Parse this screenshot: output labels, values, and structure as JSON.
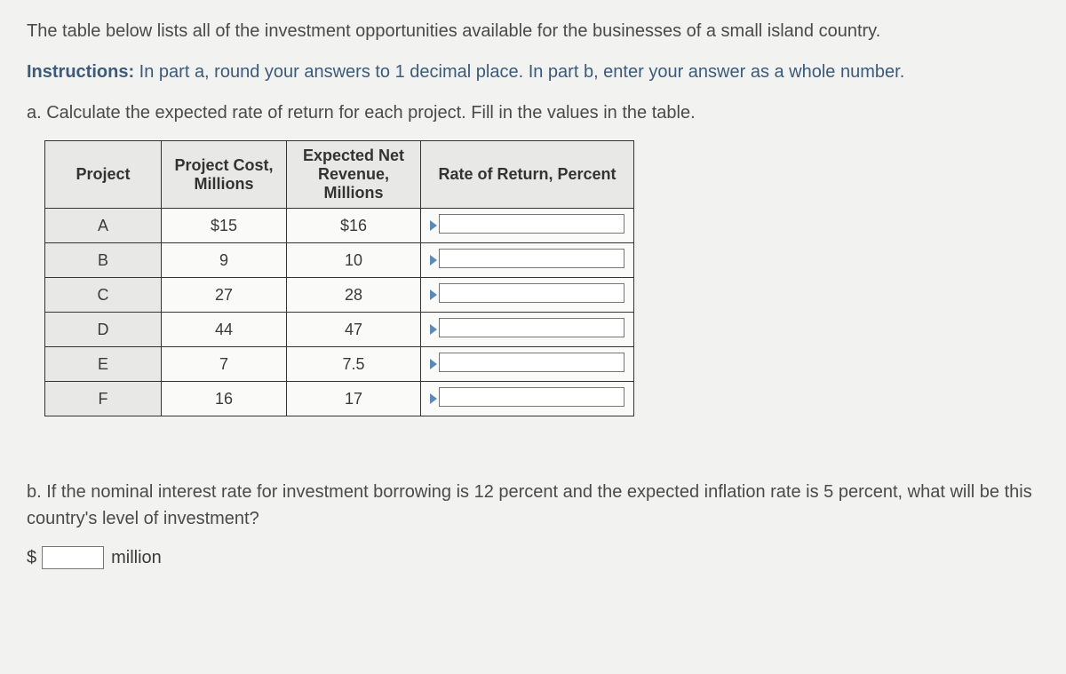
{
  "intro": "The table below lists all of the investment opportunities available for the businesses of a small island country.",
  "instructions": {
    "label": "Instructions:",
    "text": " In part a, round your answers to 1 decimal place. In part b, enter your answer as a whole number."
  },
  "part_a": "a. Calculate the expected rate of return for each project. Fill in the values in the table.",
  "table": {
    "headers": {
      "project": "Project",
      "cost": "Project Cost, Millions",
      "revenue": "Expected Net Revenue, Millions",
      "rate": "Rate of Return, Percent"
    },
    "rows": [
      {
        "project": "A",
        "cost": "$15",
        "revenue": "$16",
        "rate": ""
      },
      {
        "project": "B",
        "cost": "9",
        "revenue": "10",
        "rate": ""
      },
      {
        "project": "C",
        "cost": "27",
        "revenue": "28",
        "rate": ""
      },
      {
        "project": "D",
        "cost": "44",
        "revenue": "47",
        "rate": ""
      },
      {
        "project": "E",
        "cost": "7",
        "revenue": "7.5",
        "rate": ""
      },
      {
        "project": "F",
        "cost": "16",
        "revenue": "17",
        "rate": ""
      }
    ]
  },
  "part_b": "b. If the nominal interest rate for investment borrowing is 12 percent and the expected inflation rate is 5 percent, what will be this country's level of investment?",
  "answer": {
    "prefix": "$",
    "value": "",
    "suffix": "million"
  }
}
